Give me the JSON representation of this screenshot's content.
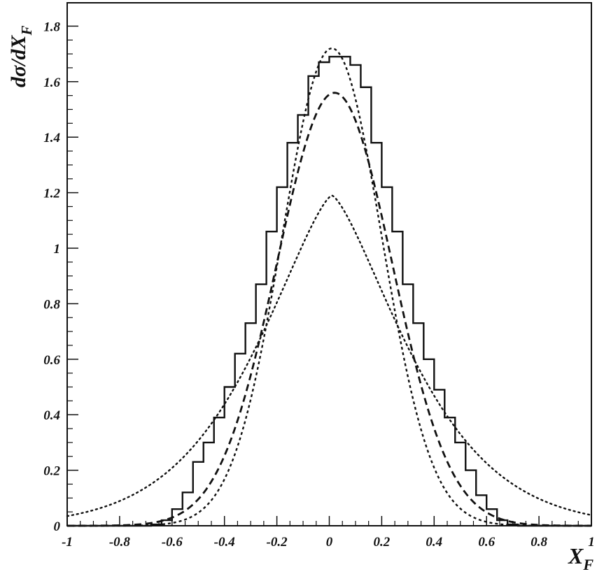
{
  "chart_data": {
    "type": "line",
    "title": "",
    "xlabel": "X",
    "xlabel_sub": "F",
    "ylabel": "dσ/dX",
    "ylabel_sub": "F",
    "xlim": [
      -1,
      1
    ],
    "ylim": [
      0,
      1.88
    ],
    "grid": false,
    "legend": "none",
    "x_ticks": [
      -1,
      -0.8,
      -0.6,
      -0.4,
      -0.2,
      0,
      0.2,
      0.4,
      0.6,
      0.8,
      1
    ],
    "x_tick_labels": [
      "-1",
      "-0.8",
      "-0.6",
      "-0.4",
      "-0.2",
      "0",
      "0.2",
      "0.4",
      "0.6",
      "0.8",
      "1"
    ],
    "y_ticks": [
      0,
      0.2,
      0.4,
      0.6,
      0.8,
      1,
      1.2,
      1.4,
      1.6,
      1.8
    ],
    "y_tick_labels": [
      "0",
      "0.2",
      "0.4",
      "0.6",
      "0.8",
      "1",
      "1.2",
      "1.4",
      "1.6",
      "1.8"
    ],
    "histogram": {
      "style": "solid-step",
      "bin_edges": [
        -1,
        -0.96,
        -0.92,
        -0.88,
        -0.84,
        -0.8,
        -0.76,
        -0.72,
        -0.68,
        -0.64,
        -0.6,
        -0.56,
        -0.52,
        -0.48,
        -0.44,
        -0.4,
        -0.36,
        -0.32,
        -0.28,
        -0.24,
        -0.2,
        -0.16,
        -0.12,
        -0.08,
        -0.04,
        0,
        0.04,
        0.08,
        0.12,
        0.16,
        0.2,
        0.24,
        0.28,
        0.32,
        0.36,
        0.4,
        0.44,
        0.48,
        0.52,
        0.56,
        0.6,
        0.64,
        0.68,
        0.72,
        0.76,
        0.8,
        0.84,
        0.88,
        0.92,
        0.96,
        1
      ],
      "values": [
        0,
        0,
        0,
        0,
        0,
        0,
        0,
        0,
        0.005,
        0.02,
        0.06,
        0.12,
        0.23,
        0.3,
        0.39,
        0.5,
        0.62,
        0.73,
        0.87,
        1.06,
        1.22,
        1.38,
        1.48,
        1.62,
        1.67,
        1.69,
        1.69,
        1.66,
        1.58,
        1.38,
        1.22,
        1.06,
        0.87,
        0.73,
        0.6,
        0.49,
        0.39,
        0.3,
        0.2,
        0.11,
        0.06,
        0.02,
        0.005,
        0,
        0,
        0,
        0,
        0,
        0,
        0
      ]
    },
    "series": [
      {
        "style": "short-dash",
        "peak_x": 0.01,
        "peak_y": 1.72,
        "sigma": 0.19,
        "power": 2.0
      },
      {
        "style": "dash",
        "peak_x": 0.02,
        "peak_y": 1.56,
        "sigma": 0.22,
        "power": 2.0
      },
      {
        "style": "dot",
        "peak_x": 0.01,
        "peak_y": 1.19,
        "sigma": 0.25,
        "power": 1.4
      }
    ]
  }
}
